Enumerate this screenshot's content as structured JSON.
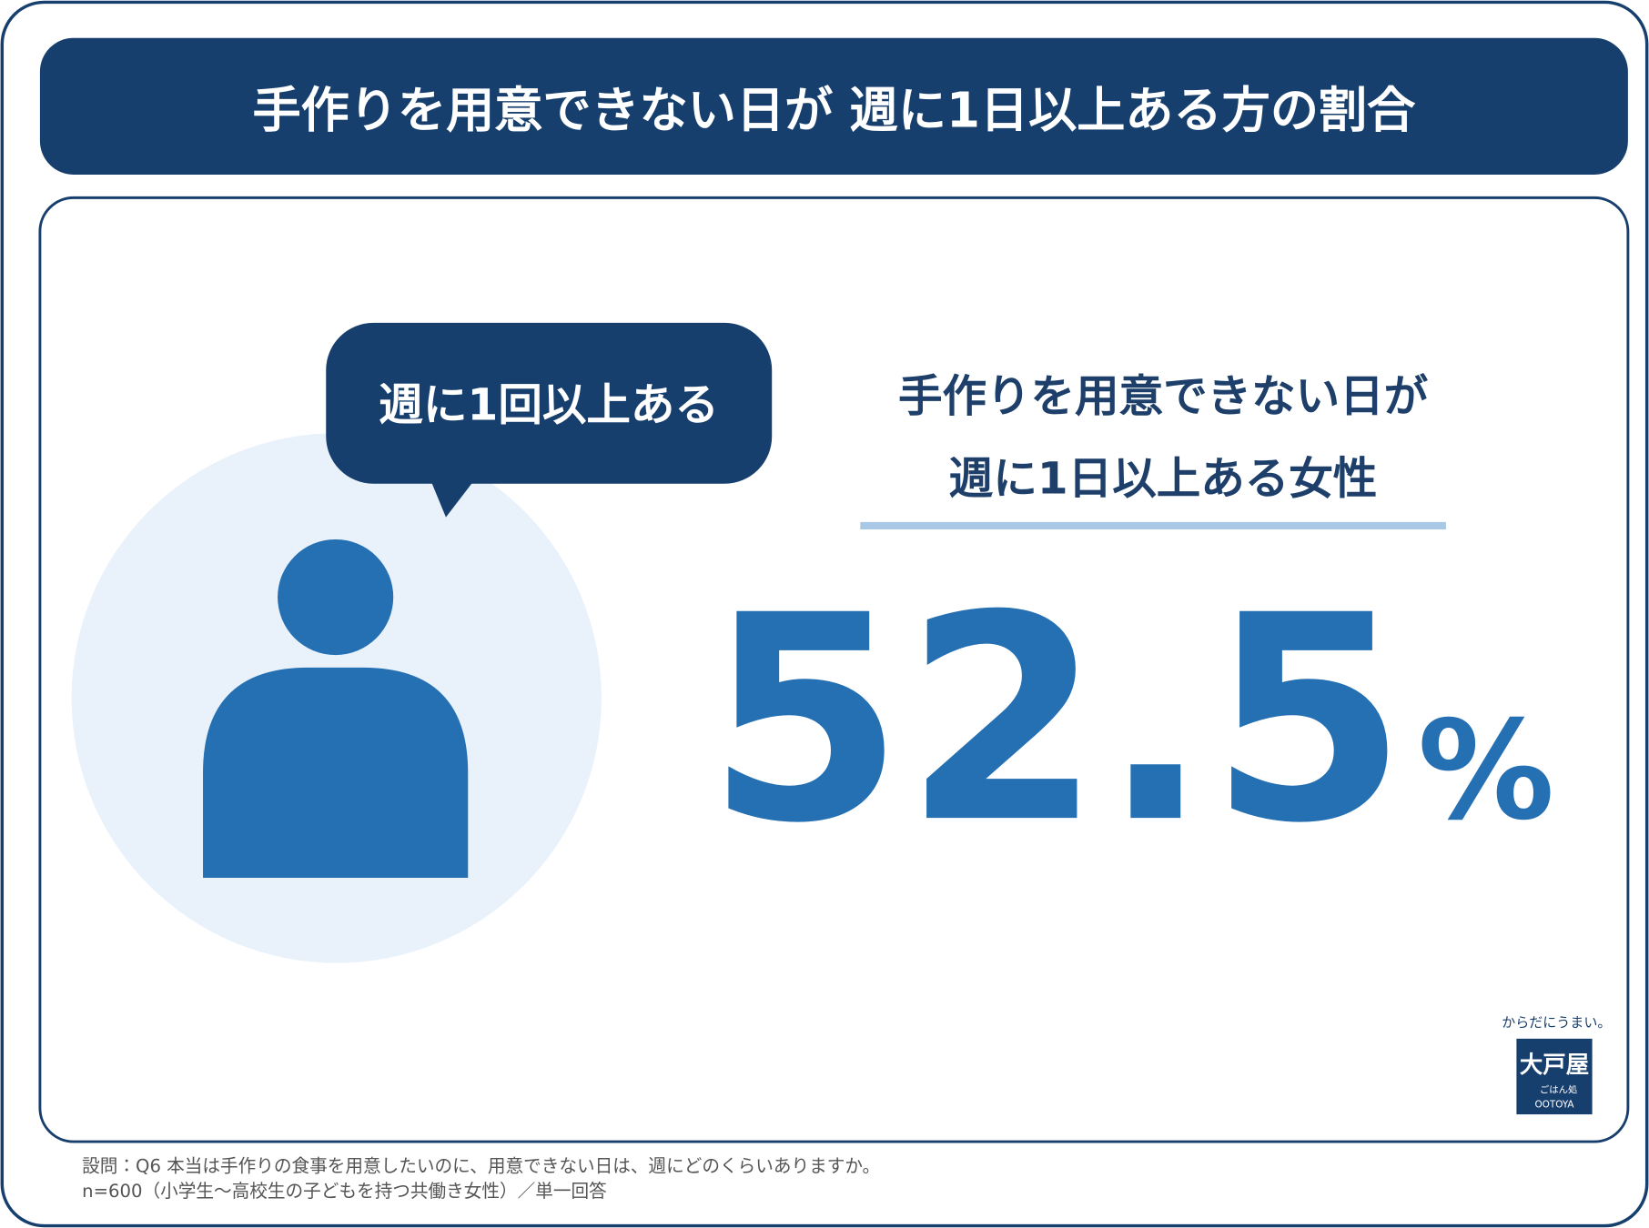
{
  "header": {
    "title": "手作りを用意できない日が 週に1日以上ある方の割合"
  },
  "bubble": {
    "label": "週に1回以上ある"
  },
  "headline": {
    "lines": [
      "手作りを用意できない日が",
      "週に1日以上ある女性"
    ]
  },
  "stat": {
    "value": 52.5,
    "unit": "%"
  },
  "logo": {
    "tagline": "からだにうまい。",
    "brand": "大戸屋",
    "subtitle": "ごはん処",
    "roman": "OOTOYA"
  },
  "footnote": {
    "lines": [
      "設問：Q6 本当は手作りの食事を用意したいのに、用意できない日は、週にどのくらいありますか。",
      "n=600（小学生～高校生の子どもを持つ共働き女性）／単一回答"
    ]
  }
}
